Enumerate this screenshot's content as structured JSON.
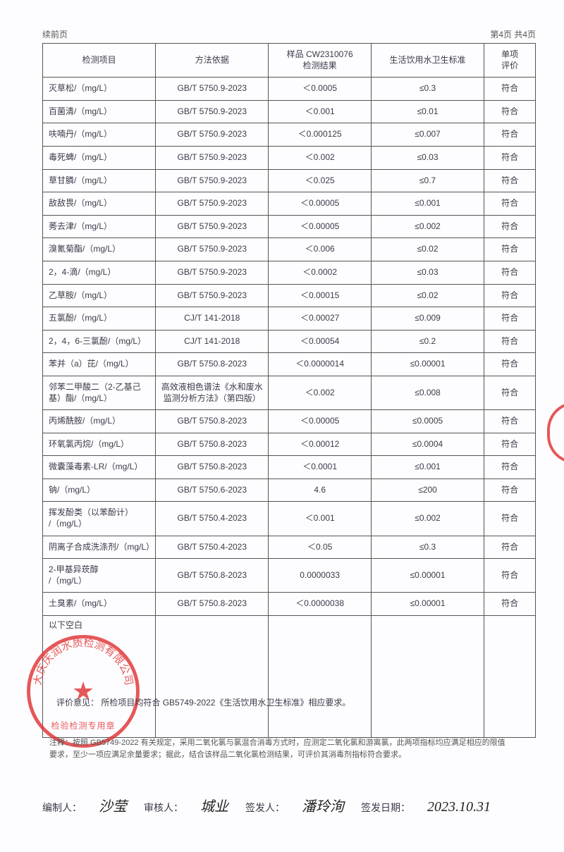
{
  "page_header": {
    "left": "续前页",
    "right": "第4页 共4页"
  },
  "table": {
    "headers": [
      "检测项目",
      "方法依据",
      "样品 CW2310076\n检测结果",
      "生活饮用水卫生标准",
      "单项\n评价"
    ],
    "rows": [
      [
        "灭草松/（mg/L）",
        "GB/T 5750.9-2023",
        "＜0.0005",
        "≤0.3",
        "符合"
      ],
      [
        "百菌清/（mg/L）",
        "GB/T 5750.9-2023",
        "＜0.001",
        "≤0.01",
        "符合"
      ],
      [
        "呋喃丹/（mg/L）",
        "GB/T 5750.9-2023",
        "＜0.000125",
        "≤0.007",
        "符合"
      ],
      [
        "毒死蜱/（mg/L）",
        "GB/T 5750.9-2023",
        "＜0.002",
        "≤0.03",
        "符合"
      ],
      [
        "草甘膦/（mg/L）",
        "GB/T 5750.9-2023",
        "＜0.025",
        "≤0.7",
        "符合"
      ],
      [
        "敌敌畏/（mg/L）",
        "GB/T 5750.9-2023",
        "＜0.00005",
        "≤0.001",
        "符合"
      ],
      [
        "莠去津/（mg/L）",
        "GB/T 5750.9-2023",
        "＜0.00005",
        "≤0.002",
        "符合"
      ],
      [
        "溴氰菊酯/（mg/L）",
        "GB/T 5750.9-2023",
        "＜0.006",
        "≤0.02",
        "符合"
      ],
      [
        "2，4-滴/（mg/L）",
        "GB/T 5750.9-2023",
        "＜0.0002",
        "≤0.03",
        "符合"
      ],
      [
        "乙草胺/（mg/L）",
        "GB/T 5750.9-2023",
        "＜0.00015",
        "≤0.02",
        "符合"
      ],
      [
        "五氯酚/（mg/L）",
        "CJ/T 141-2018",
        "＜0.00027",
        "≤0.009",
        "符合"
      ],
      [
        "2，4，6-三氯酚/（mg/L）",
        "CJ/T 141-2018",
        "＜0.00054",
        "≤0.2",
        "符合"
      ],
      [
        "苯并（a）芘/（mg/L）",
        "GB/T 5750.8-2023",
        "＜0.0000014",
        "≤0.00001",
        "符合"
      ],
      [
        "邻苯二甲酸二（2-乙基己基）酯/（mg/L）",
        "高效液相色谱法《水和废水监测分析方法》（第四版）",
        "＜0.002",
        "≤0.008",
        "符合"
      ],
      [
        "丙烯酰胺/（mg/L）",
        "GB/T 5750.8-2023",
        "＜0.00005",
        "≤0.0005",
        "符合"
      ],
      [
        "环氧氯丙烷/（mg/L）",
        "GB/T 5750.8-2023",
        "＜0.00012",
        "≤0.0004",
        "符合"
      ],
      [
        "微囊藻毒素-LR/（mg/L）",
        "GB/T 5750.8-2023",
        "＜0.0001",
        "≤0.001",
        "符合"
      ],
      [
        "钠/（mg/L）",
        "GB/T 5750.6-2023",
        "4.6",
        "≤200",
        "符合"
      ],
      [
        "挥发酚类（以苯酚计）\n/（mg/L）",
        "GB/T 5750.4-2023",
        "＜0.001",
        "≤0.002",
        "符合"
      ],
      [
        "阴离子合成洗涤剂/（mg/L）",
        "GB/T 5750.4-2023",
        "＜0.05",
        "≤0.3",
        "符合"
      ],
      [
        "2-甲基异莰醇\n/（mg/L）",
        "GB/T 5750.8-2023",
        "0.0000033",
        "≤0.00001",
        "符合"
      ],
      [
        "土臭素/（mg/L）",
        "GB/T 5750.8-2023",
        "＜0.0000038",
        "≤0.00001",
        "符合"
      ]
    ],
    "blank_text": "以下空白"
  },
  "opinion": {
    "label": "评价意见：",
    "text": "所检项目均符合 GB5749-2022《生活饮用水卫生标准》相应要求。"
  },
  "stamp": {
    "outer_text": "大庆庆润水质检测有限公司",
    "inner_text": "检验检测专用章"
  },
  "note": "注释：按照 GB5749-2022 有关规定，采用二氧化氯与氯混合消毒方式时，应测定二氧化氯和游离氯，此两项指标均应满足相应的限值要求，至少一项应满足余量要求；据此，结合该样品二氧化氯检测结果，可评价其消毒剂指标符合要求。",
  "signatures": {
    "prepare_label": "编制人：",
    "review_label": "审核人：",
    "issue_label": "签发人：",
    "date_label": "签发日期：",
    "date_value": "2023.10.31"
  }
}
